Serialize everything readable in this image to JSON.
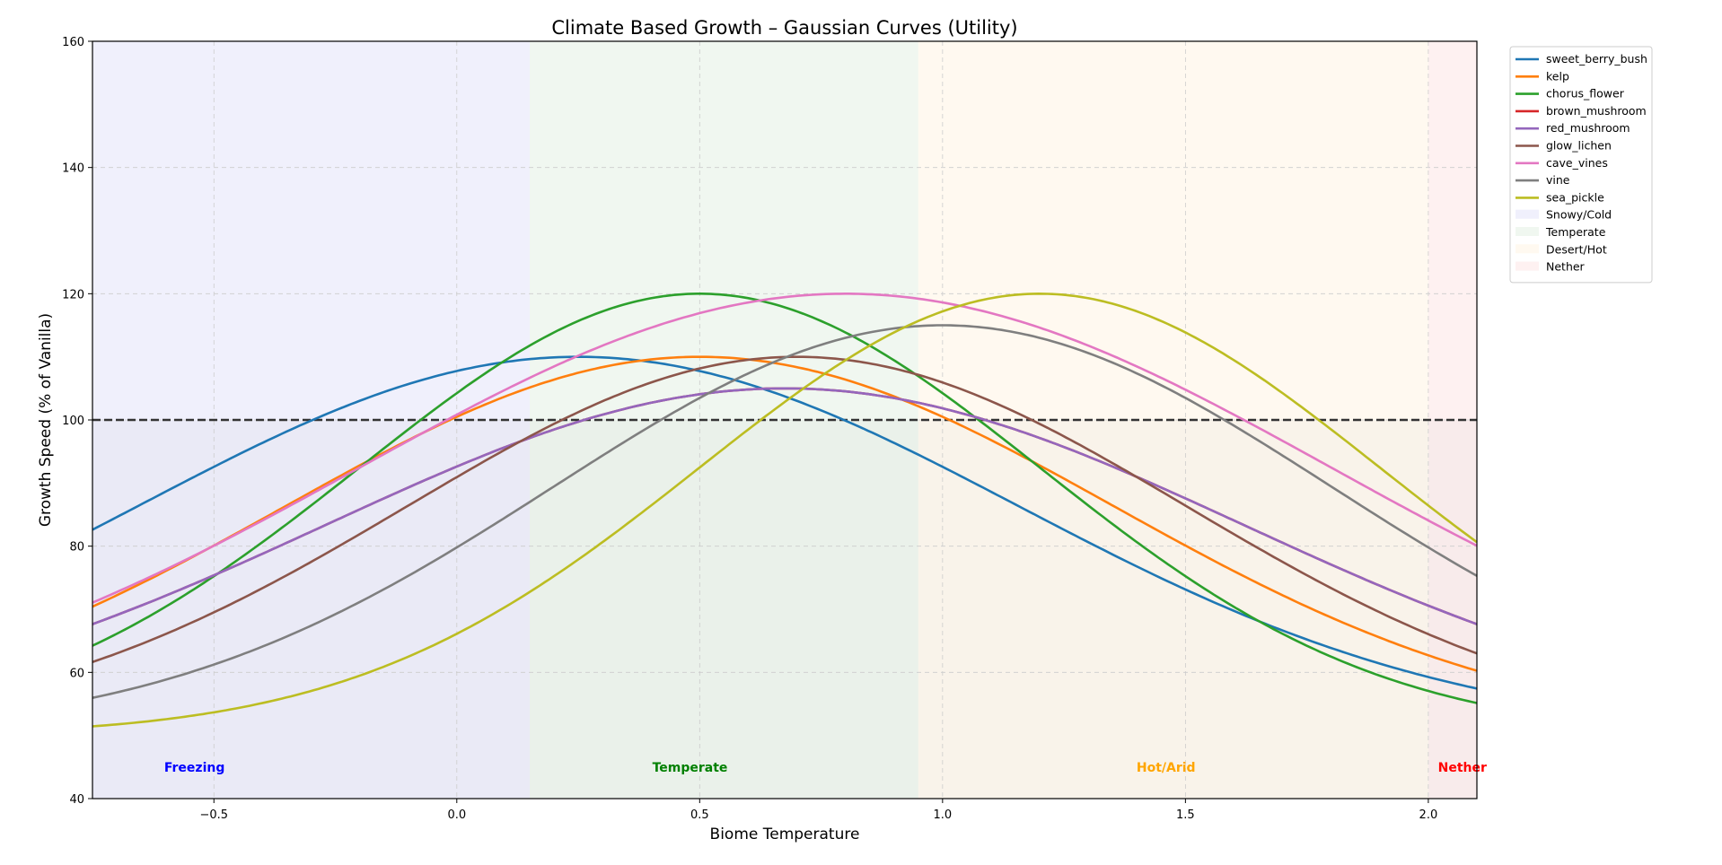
{
  "chart_data": {
    "type": "line",
    "title": "Climate Based Growth – Gaussian Curves (Utility)",
    "xlabel": "Biome Temperature",
    "ylabel": "Growth Speed (% of Vanilla)",
    "xlim": [
      -0.75,
      2.1
    ],
    "ylim": [
      40,
      160
    ],
    "xticks": [
      -0.5,
      0.0,
      0.5,
      1.0,
      1.5,
      2.0
    ],
    "xtick_labels": [
      "−0.5",
      "0.0",
      "0.5",
      "1.0",
      "1.5",
      "2.0"
    ],
    "yticks": [
      40,
      60,
      80,
      100,
      120,
      140,
      160
    ],
    "ytick_labels": [
      "40",
      "60",
      "80",
      "100",
      "120",
      "140",
      "160"
    ],
    "grid": true,
    "legend_position": "outside-top-right",
    "reference_line": {
      "y": 100,
      "style": "dashed",
      "color": "#333333"
    },
    "curve_model": "y = baseline + (peak - baseline) * exp(-k * (x - center)^2)",
    "series": [
      {
        "name": "sweet_berry_bush",
        "color": "#1f77b4",
        "center": 0.25,
        "peak": 110,
        "baseline": 50,
        "k": 0.61
      },
      {
        "name": "kelp",
        "color": "#ff7f0e",
        "center": 0.5,
        "peak": 110,
        "baseline": 50,
        "k": 0.69
      },
      {
        "name": "chorus_flower",
        "color": "#2ca02c",
        "center": 0.5,
        "peak": 120,
        "baseline": 50,
        "k": 1.02
      },
      {
        "name": "brown_mushroom",
        "color": "#d62728",
        "center": 0.675,
        "peak": 105,
        "baseline": 50,
        "k": 0.56
      },
      {
        "name": "red_mushroom",
        "color": "#9467bd",
        "center": 0.675,
        "peak": 105,
        "baseline": 50,
        "k": 0.56
      },
      {
        "name": "glow_lichen",
        "color": "#8c564b",
        "center": 0.7,
        "peak": 110,
        "baseline": 50,
        "k": 0.78
      },
      {
        "name": "cave_vines",
        "color": "#e377c2",
        "center": 0.8,
        "peak": 120,
        "baseline": 50,
        "k": 0.5
      },
      {
        "name": "vine",
        "color": "#7f7f7f",
        "center": 1.0,
        "peak": 115,
        "baseline": 50,
        "k": 0.78
      },
      {
        "name": "sea_pickle",
        "color": "#bcbd22",
        "center": 1.2,
        "peak": 120,
        "baseline": 50,
        "k": 1.02
      }
    ],
    "regions": [
      {
        "name": "Snowy/Cold",
        "from": -0.75,
        "to": 0.15,
        "color": "#e6e6fa"
      },
      {
        "name": "Temperate",
        "from": 0.15,
        "to": 0.95,
        "color": "#e6f2e6"
      },
      {
        "name": "Desert/Hot",
        "from": 0.95,
        "to": 2.0,
        "color": "#fff5e6"
      },
      {
        "name": "Nether",
        "from": 2.0,
        "to": 2.1,
        "color": "#fde8e8"
      }
    ],
    "annotations": [
      {
        "text": "Freezing",
        "x": -0.54,
        "y": 45,
        "color": "#0000ff"
      },
      {
        "text": "Temperate",
        "x": 0.48,
        "y": 45,
        "color": "#008000"
      },
      {
        "text": "Hot/Arid",
        "x": 1.46,
        "y": 45,
        "color": "#ffa500"
      },
      {
        "text": "Nether",
        "x": 2.07,
        "y": 45,
        "color": "#ff0000"
      }
    ]
  }
}
